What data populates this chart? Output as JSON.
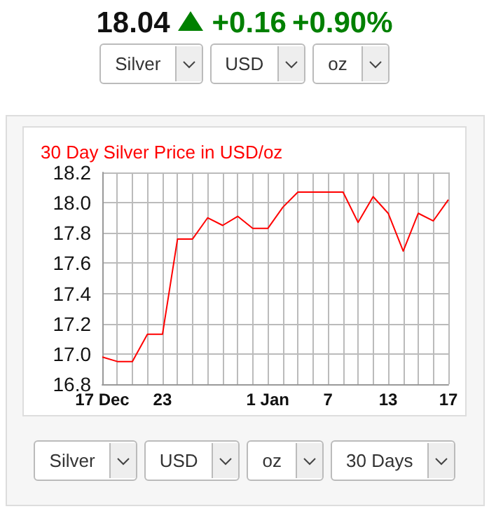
{
  "chart_data": {
    "type": "line",
    "title": "30 Day Silver Price in USD/oz",
    "categories": [
      "17 Dec",
      null,
      null,
      null,
      "23",
      null,
      null,
      null,
      null,
      null,
      null,
      "1 Jan",
      null,
      null,
      null,
      "7",
      null,
      null,
      null,
      "13",
      null,
      null,
      null,
      "17"
    ],
    "series": [
      {
        "color": "#ff0000",
        "values": [
          16.98,
          16.95,
          16.95,
          17.13,
          17.13,
          17.76,
          17.76,
          17.9,
          17.85,
          17.91,
          17.83,
          17.83,
          17.97,
          18.07,
          18.07,
          18.07,
          18.07,
          17.87,
          18.04,
          17.93,
          17.68,
          17.93,
          17.88,
          18.02
        ]
      }
    ],
    "ylim": [
      16.8,
      18.2
    ],
    "yticks": [
      16.8,
      {
        "value": 17,
        "label": "17.0"
      },
      17.2,
      17.4,
      17.6,
      17.8,
      {
        "value": 18,
        "label": "18.0"
      },
      18.2
    ],
    "grid": true,
    "marker": "none",
    "line_style": "solid",
    "annotations": [
      "18.04",
      "+0.16",
      "+0.90%",
      "Silver",
      "USD",
      "oz",
      "Silver",
      "USD",
      "oz",
      "30 Days"
    ]
  }
}
